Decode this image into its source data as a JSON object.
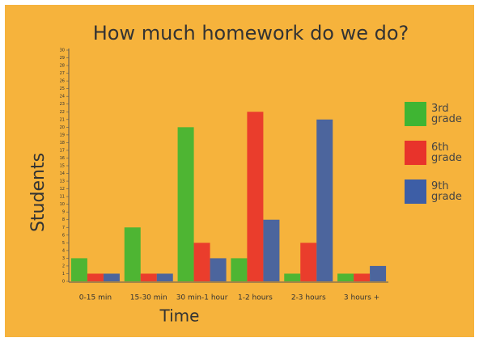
{
  "chart_data": {
    "type": "bar",
    "title": "How much homework do we do?",
    "x_label": "Time",
    "y_label": "Students",
    "categories": [
      "0-15 min",
      "15-30 min",
      "30 min-1 hour",
      "1-2 hours",
      "2-3 hours",
      "3 hours +"
    ],
    "series": [
      {
        "name": "3rd grade",
        "color": "#3fb533",
        "values": [
          3,
          7,
          20,
          3,
          1,
          1
        ]
      },
      {
        "name": "6th grade",
        "color": "#e8332b",
        "values": [
          1,
          1,
          5,
          22,
          5,
          1
        ]
      },
      {
        "name": "9th grade",
        "color": "#3d5ea6",
        "values": [
          1,
          1,
          3,
          8,
          21,
          2
        ]
      }
    ],
    "ylim": [
      0,
      30
    ],
    "yticks": [
      0,
      1,
      2,
      3,
      4,
      5,
      6,
      7,
      8,
      9,
      10,
      11,
      12,
      13,
      14,
      15,
      16,
      17,
      18,
      19,
      20,
      21,
      22,
      23,
      24,
      25,
      26,
      27,
      28,
      29,
      30
    ],
    "legend": "right"
  }
}
